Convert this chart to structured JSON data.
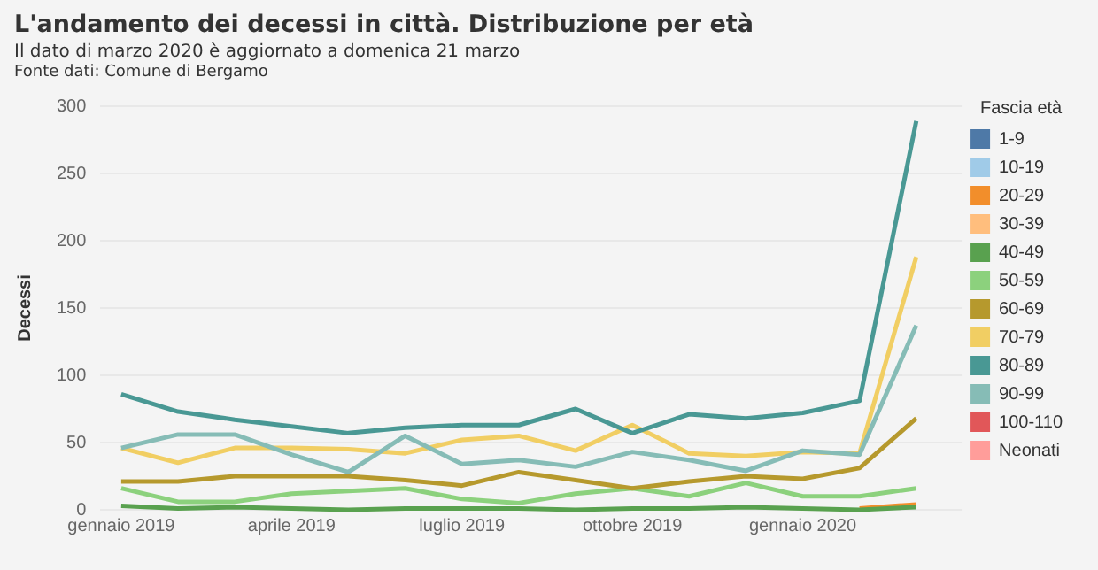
{
  "chart_data": {
    "type": "line",
    "title": "L'andamento dei decessi in città. Distribuzione per età",
    "subtitle": "Il dato di marzo 2020 è aggiornato a domenica 21 marzo",
    "annotations": [
      "Fonte dati: Comune di Bergamo"
    ],
    "ylabel": "Decessi",
    "legend_title": "Fascia età",
    "legend": "right",
    "grid": "y",
    "x": [
      "2019-01",
      "2019-02",
      "2019-03",
      "2019-04",
      "2019-05",
      "2019-06",
      "2019-07",
      "2019-08",
      "2019-09",
      "2019-10",
      "2019-11",
      "2019-12",
      "2020-01",
      "2020-02",
      "2020-03"
    ],
    "xlim": [
      "2018-12-20",
      "2020-03-25"
    ],
    "xticks": [
      {
        "value": "2019-01",
        "label": "gennaio 2019"
      },
      {
        "value": "2019-04",
        "label": "aprile 2019"
      },
      {
        "value": "2019-07",
        "label": "luglio 2019"
      },
      {
        "value": "2019-10",
        "label": "ottobre 2019"
      },
      {
        "value": "2020-01",
        "label": "gennaio 2020"
      }
    ],
    "ylim": [
      0,
      300
    ],
    "yticks": [
      0,
      50,
      100,
      150,
      200,
      250,
      300
    ],
    "series": [
      {
        "name": "1-9",
        "color": "#4e79a7",
        "values": [
          null,
          null,
          null,
          null,
          null,
          null,
          null,
          null,
          null,
          null,
          null,
          null,
          null,
          null,
          null
        ]
      },
      {
        "name": "10-19",
        "color": "#a0cbe8",
        "values": [
          null,
          null,
          null,
          null,
          null,
          null,
          null,
          null,
          null,
          null,
          null,
          null,
          null,
          null,
          null
        ]
      },
      {
        "name": "20-29",
        "color": "#f28e2b",
        "values": [
          null,
          null,
          null,
          null,
          null,
          null,
          null,
          null,
          null,
          null,
          null,
          null,
          null,
          1,
          4
        ]
      },
      {
        "name": "30-39",
        "color": "#ffbe7d",
        "values": [
          null,
          null,
          null,
          null,
          null,
          null,
          null,
          null,
          null,
          null,
          null,
          null,
          null,
          null,
          null
        ]
      },
      {
        "name": "40-49",
        "color": "#59a14f",
        "values": [
          3,
          1,
          2,
          1,
          0,
          1,
          1,
          1,
          0,
          1,
          1,
          2,
          1,
          0,
          2
        ]
      },
      {
        "name": "50-59",
        "color": "#8cd17d",
        "values": [
          16,
          6,
          6,
          12,
          14,
          16,
          8,
          5,
          12,
          16,
          10,
          20,
          10,
          10,
          16
        ]
      },
      {
        "name": "60-69",
        "color": "#b6992d",
        "values": [
          21,
          21,
          25,
          25,
          25,
          22,
          18,
          28,
          22,
          16,
          21,
          25,
          23,
          31,
          68
        ]
      },
      {
        "name": "70-79",
        "color": "#f1ce63",
        "values": [
          46,
          35,
          46,
          46,
          45,
          42,
          52,
          55,
          44,
          63,
          42,
          40,
          43,
          42,
          188
        ]
      },
      {
        "name": "80-89",
        "color": "#499894",
        "values": [
          86,
          73,
          67,
          62,
          57,
          61,
          63,
          63,
          75,
          57,
          71,
          68,
          72,
          81,
          289
        ]
      },
      {
        "name": "90-99",
        "color": "#86bcb6",
        "values": [
          46,
          56,
          56,
          41,
          28,
          55,
          34,
          37,
          32,
          43,
          37,
          29,
          44,
          41,
          137
        ]
      },
      {
        "name": "100-110",
        "color": "#e15759",
        "values": [
          null,
          null,
          null,
          null,
          null,
          null,
          null,
          null,
          null,
          null,
          null,
          null,
          null,
          null,
          null
        ]
      },
      {
        "name": "Neonati",
        "color": "#ff9d9a",
        "values": [
          null,
          null,
          null,
          null,
          null,
          null,
          null,
          null,
          null,
          null,
          null,
          null,
          null,
          null,
          null
        ]
      }
    ]
  }
}
